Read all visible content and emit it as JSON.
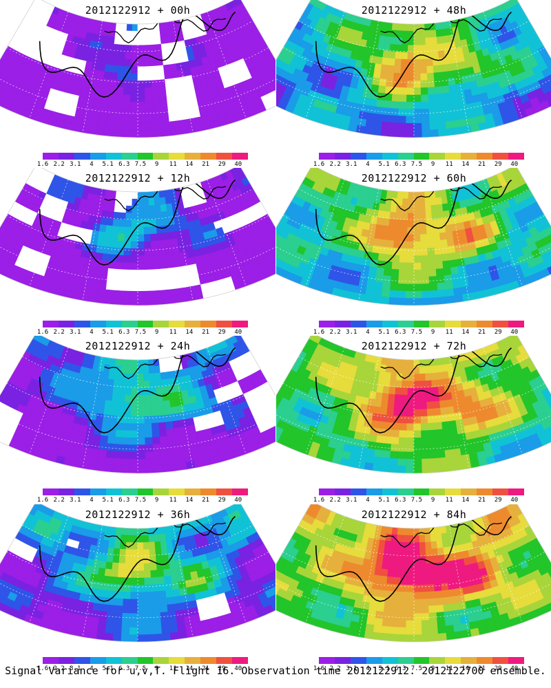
{
  "caption": "Signal Variance for u,v,T. Flight 16. Observation time 2012122912. 2012122700 ensemble.",
  "colorbar": {
    "ticks": [
      "1.6",
      "2.2",
      "3.1",
      "4",
      "5.1",
      "6.3",
      "7.5",
      "9",
      "11",
      "14",
      "21",
      "29",
      "40"
    ],
    "colors": [
      "#9b1fe6",
      "#7a22e2",
      "#2f55e8",
      "#1a9ce8",
      "#11c2d6",
      "#2bcf90",
      "#22c52a",
      "#a8d53a",
      "#e6dc3c",
      "#e6b03c",
      "#ee8a2e",
      "#f05040",
      "#ee1a80"
    ]
  },
  "panels": [
    {
      "title": "2012122912 + 00h",
      "intensity": 0.1,
      "gaps": 0.55
    },
    {
      "title": "2012122912 + 48h",
      "intensity": 0.55,
      "gaps": 0.0
    },
    {
      "title": "2012122912 + 12h",
      "intensity": 0.2,
      "gaps": 0.45
    },
    {
      "title": "2012122912 + 60h",
      "intensity": 0.62,
      "gaps": 0.0
    },
    {
      "title": "2012122912 + 24h",
      "intensity": 0.32,
      "gaps": 0.3
    },
    {
      "title": "2012122912 + 72h",
      "intensity": 0.72,
      "gaps": 0.0
    },
    {
      "title": "2012122912 + 36h",
      "intensity": 0.42,
      "gaps": 0.12
    },
    {
      "title": "2012122912 + 84h",
      "intensity": 0.8,
      "gaps": 0.0
    }
  ]
}
